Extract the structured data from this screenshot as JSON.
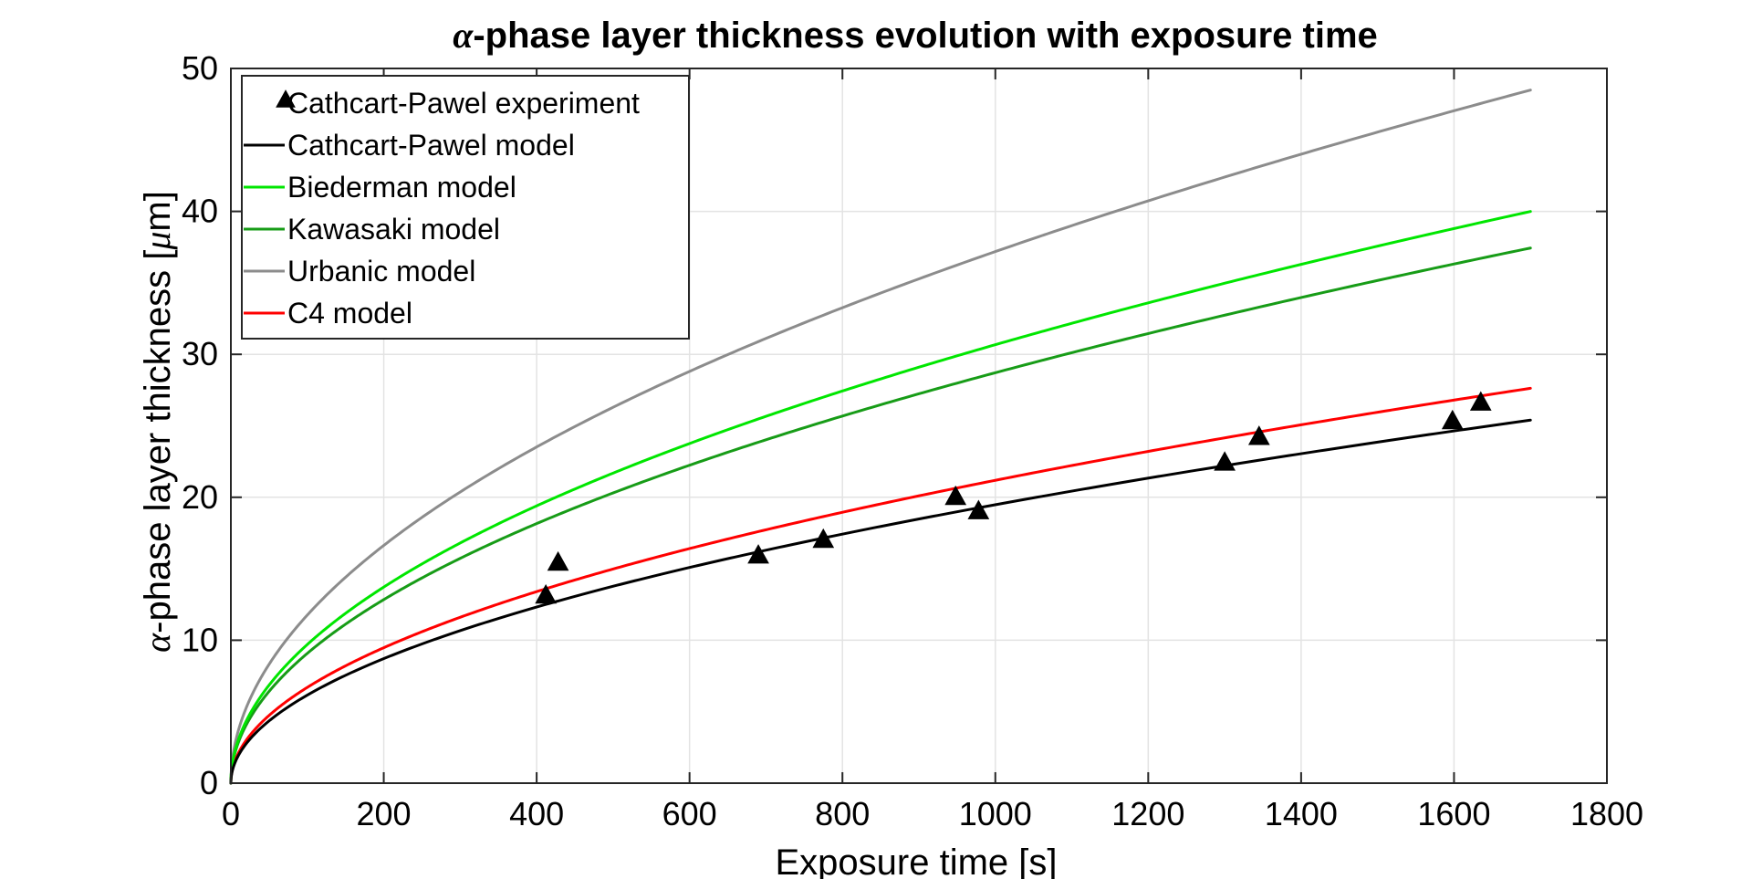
{
  "chart_data": {
    "type": "line",
    "title": {
      "symbol": "α",
      "rest": "-phase layer thickness evolution with exposure time"
    },
    "xlabel": "Exposure time [s]",
    "ylabel": {
      "symbol": "α",
      "mid": "-phase layer thickness [",
      "unit_symbol": "μ",
      "unit_rest": "m]"
    },
    "xlim": [
      0,
      1800
    ],
    "ylim": [
      0,
      50
    ],
    "xticks": [
      0,
      200,
      400,
      600,
      800,
      1000,
      1200,
      1400,
      1600,
      1800
    ],
    "yticks": [
      0,
      10,
      20,
      30,
      40,
      50
    ],
    "grid": true,
    "legend_position": "top-left",
    "series": [
      {
        "name": "Cathcart-Pawel experiment",
        "kind": "scatter",
        "marker": "triangle",
        "color": "#000000",
        "points": [
          [
            412,
            13.1
          ],
          [
            428,
            15.4
          ],
          [
            690,
            15.9
          ],
          [
            775,
            17.0
          ],
          [
            948,
            20.0
          ],
          [
            978,
            19.0
          ],
          [
            1300,
            22.4
          ],
          [
            1345,
            24.2
          ],
          [
            1598,
            25.3
          ],
          [
            1635,
            26.6
          ]
        ]
      },
      {
        "name": "Cathcart-Pawel model",
        "kind": "line",
        "color": "#000000",
        "k": 0.616,
        "x_end": 1700
      },
      {
        "name": "Biederman model",
        "kind": "line",
        "color": "#00e600",
        "k": 0.97,
        "x_end": 1700
      },
      {
        "name": "Kawasaki model",
        "kind": "line",
        "color": "#179c17",
        "k": 0.908,
        "x_end": 1700
      },
      {
        "name": "Urbanic model",
        "kind": "line",
        "color": "#8c8c8c",
        "k": 1.176,
        "x_end": 1700
      },
      {
        "name": "C4 model",
        "kind": "line",
        "color": "#ff0000",
        "k": 0.67,
        "x_end": 1700
      }
    ]
  }
}
